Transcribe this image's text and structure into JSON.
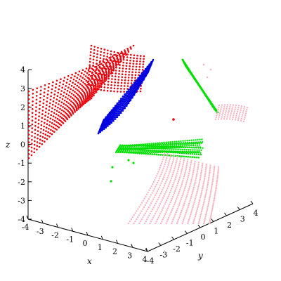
{
  "chart_data": {
    "type": "scatter",
    "title": "",
    "projection": "3d",
    "grid": false,
    "axes": {
      "x": {
        "label": "x",
        "range": [
          -4,
          4
        ],
        "ticks": [
          -4,
          -3,
          -2,
          -1,
          0,
          1,
          2,
          3,
          4
        ]
      },
      "y": {
        "label": "y",
        "range": [
          -4,
          4
        ],
        "ticks": [
          -4,
          -3,
          -2,
          -1,
          0,
          1,
          2,
          3,
          4
        ]
      },
      "z": {
        "label": "z",
        "range": [
          -4,
          4
        ],
        "ticks": [
          -4,
          -3,
          -2,
          -1,
          0,
          1,
          2,
          3,
          4
        ]
      }
    },
    "series": [
      {
        "color": "#e8000b",
        "style": "point curves",
        "description_region": {
          "x": [
            -4,
            1.5
          ],
          "y": [
            -3,
            0
          ],
          "z": [
            1,
            4.5
          ]
        }
      },
      {
        "color": "#0000e0",
        "style": "point curves",
        "description_region": {
          "x": [
            -1,
            2
          ],
          "y": [
            -1,
            1
          ],
          "z": [
            1,
            3.5
          ]
        }
      },
      {
        "color": "#00e000",
        "style": "point curves",
        "description_region": {
          "x": [
            -2,
            2
          ],
          "y": [
            0,
            4
          ],
          "z": [
            -2,
            3
          ]
        }
      },
      {
        "color": "#f4b6c2",
        "style": "point curves",
        "description_region": {
          "x": [
            0,
            4
          ],
          "y": [
            0,
            4
          ],
          "z": [
            -4,
            2
          ]
        }
      }
    ]
  }
}
